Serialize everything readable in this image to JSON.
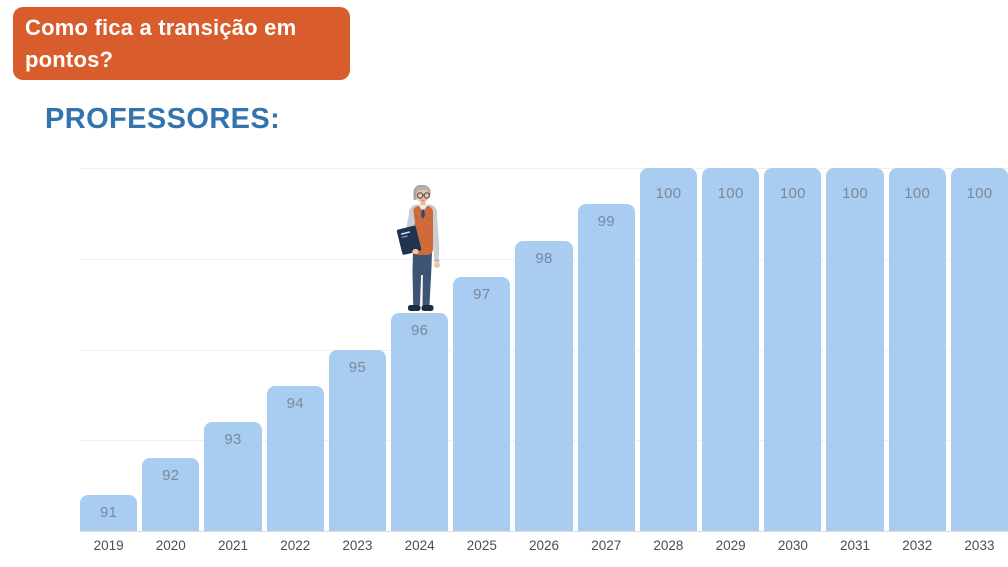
{
  "banner": {
    "line1": "Como fica a transição em",
    "line2": "pontos?",
    "bg_color": "#d85c2c",
    "text_color": "#ffffff"
  },
  "heading": {
    "text": "PROFESSORES:",
    "color": "#3474ae"
  },
  "chart_data": {
    "type": "bar",
    "title": "",
    "xlabel": "",
    "ylabel": "",
    "categories": [
      "2019",
      "2020",
      "2021",
      "2022",
      "2023",
      "2024",
      "2025",
      "2026",
      "2027",
      "2028",
      "2029",
      "2030",
      "2031",
      "2032",
      "2033"
    ],
    "values": [
      91,
      92,
      93,
      94,
      95,
      96,
      97,
      98,
      99,
      100,
      100,
      100,
      100,
      100,
      100
    ],
    "ylim": [
      90,
      100
    ],
    "grid": true,
    "gridline_interval": 2.5,
    "legend_position": "none",
    "bar_color": "#a8cdf0",
    "value_label_color": "#7b8899",
    "axis_label_color": "#4b4e52",
    "gridline_color": "#f0f0f0",
    "axis_line_color": "#dcdcdc"
  },
  "illustration": {
    "name": "professor-character",
    "description": "elderly professor with gray hair, glasses, orange vest, holding a dark book",
    "standing_on_category": "2024"
  }
}
